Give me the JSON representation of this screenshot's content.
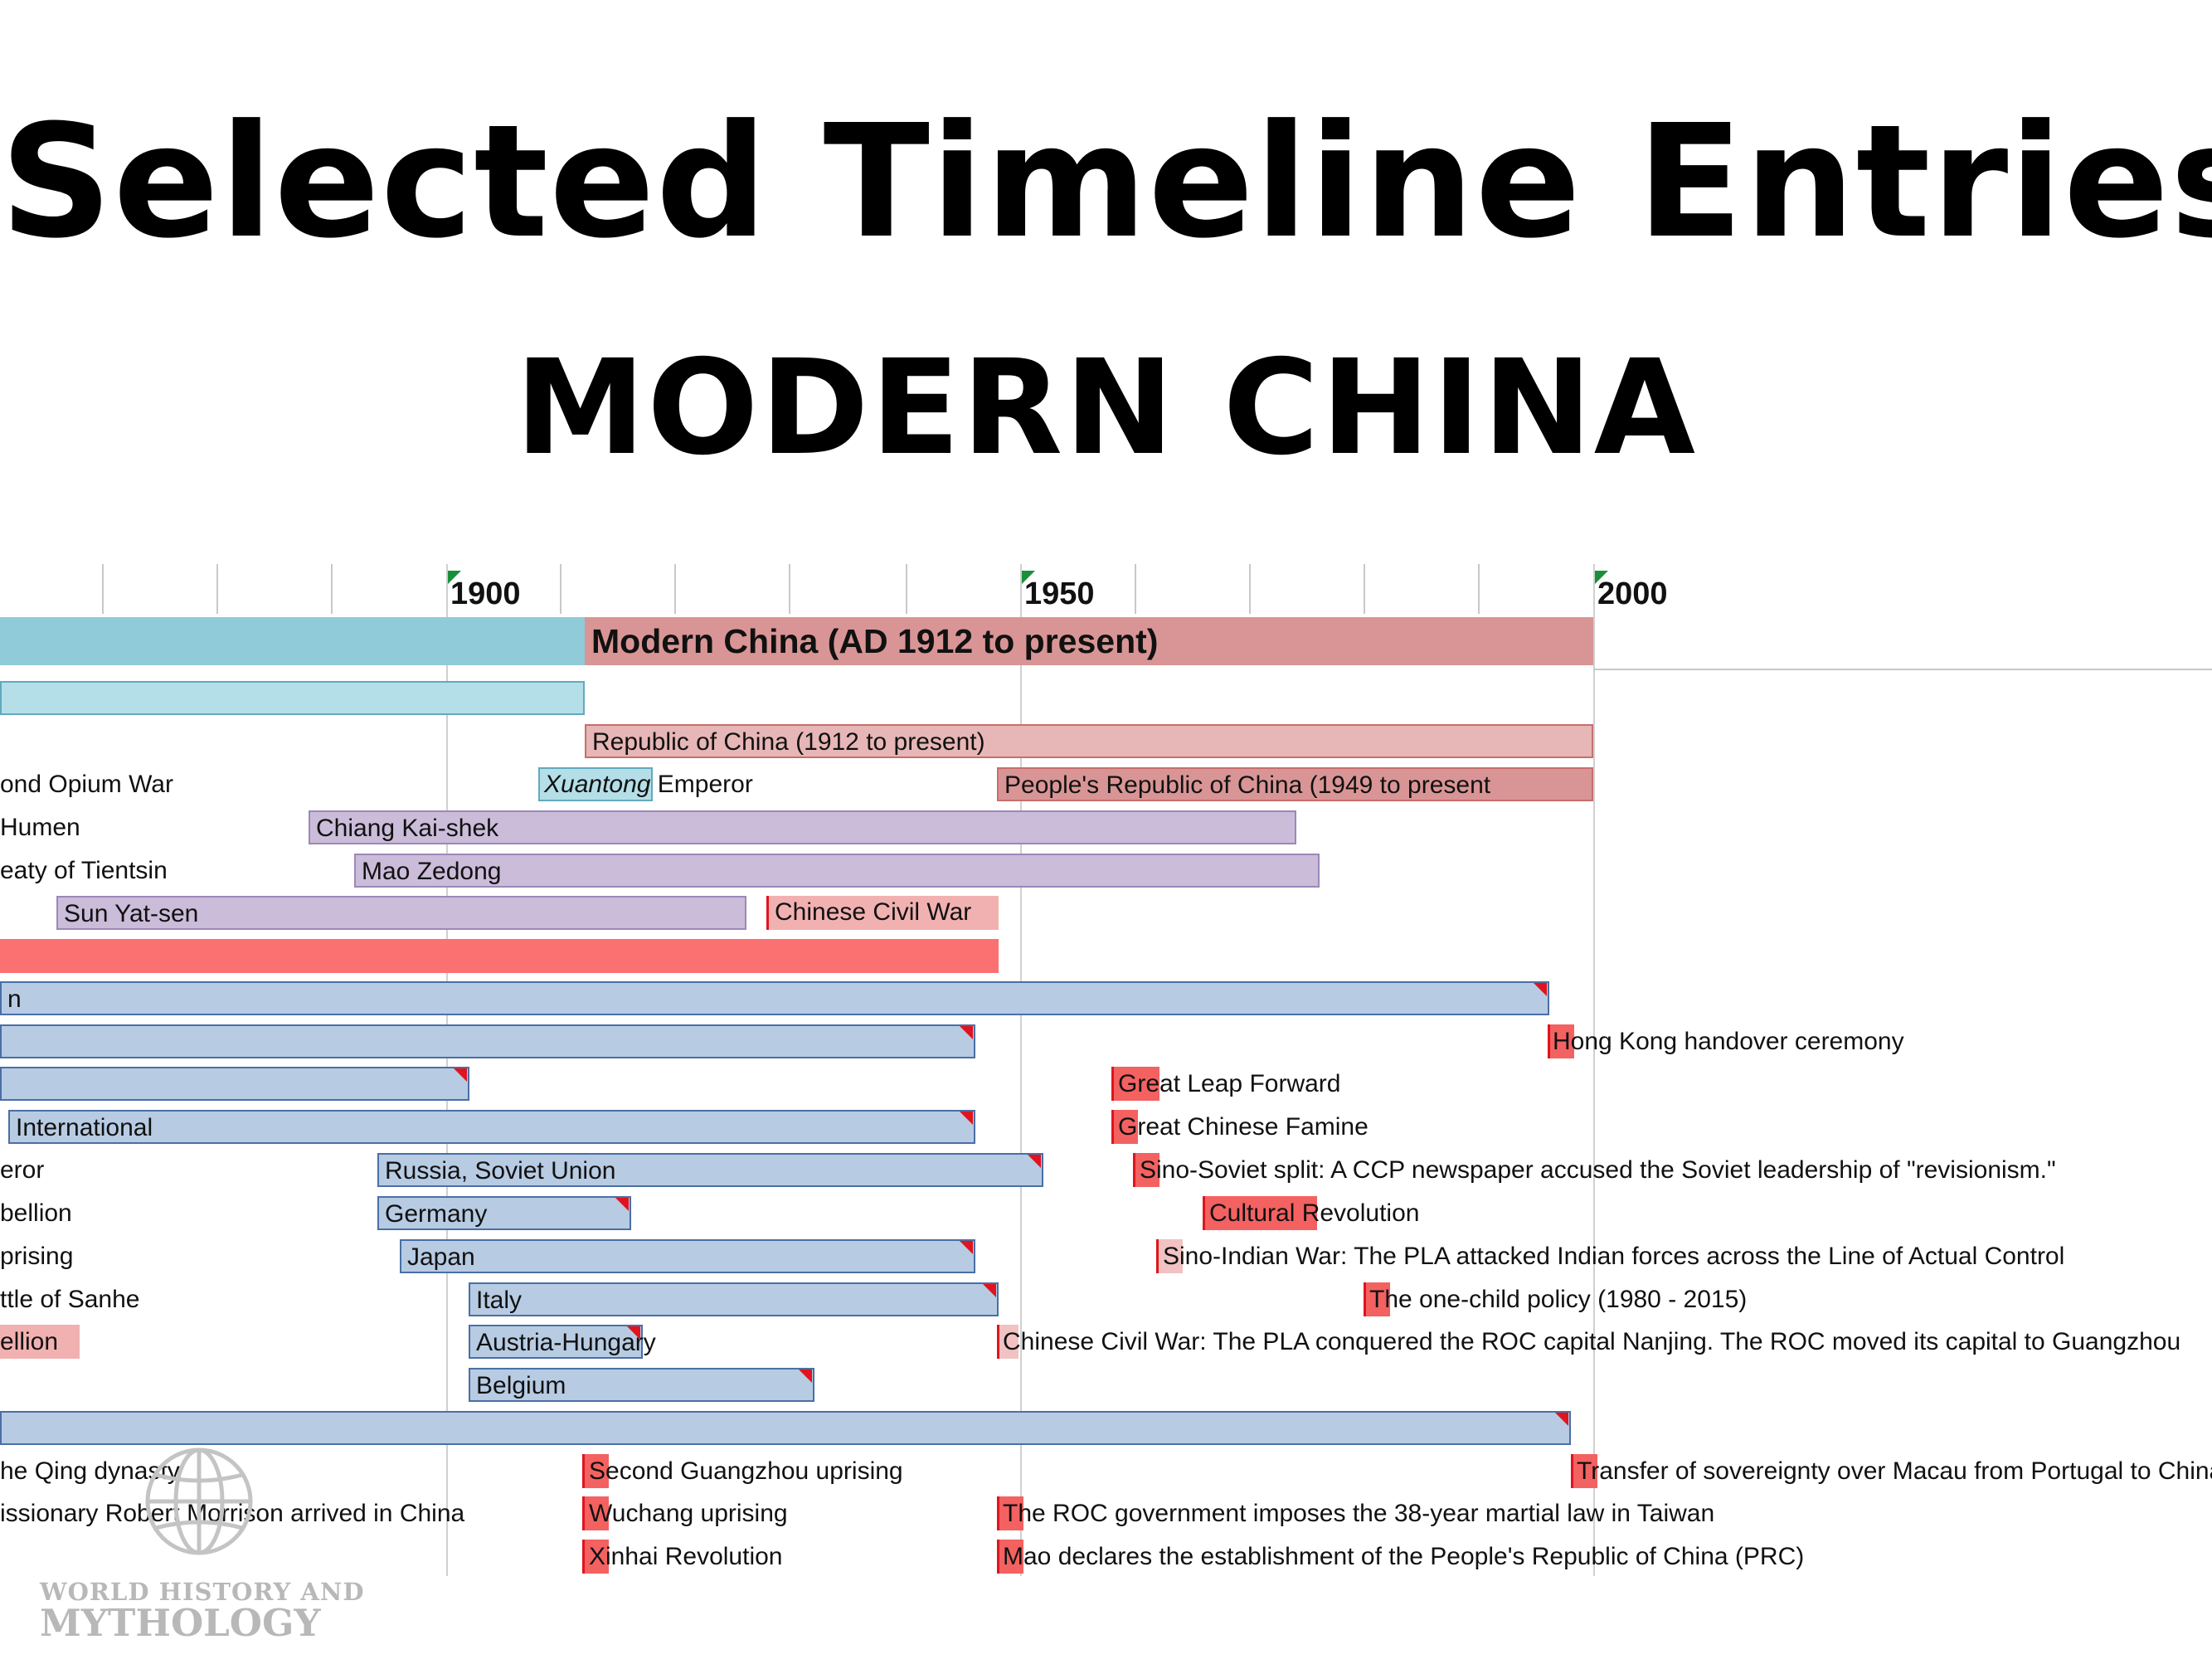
{
  "title": "Selected Timeline Entries",
  "subtitle": "MODERN CHINA",
  "axis": {
    "labels": [
      "1900",
      "1950",
      "2000"
    ],
    "flag_color": "#1a8f3a"
  },
  "colors": {
    "era_left": "#8fcbd8",
    "era_modern": "#d99595",
    "qing_bar": "#b4dfe8",
    "roc": "#e7b6b6",
    "prc": "#d99595",
    "person": "#cbbcda",
    "war": "#f2b1b1",
    "red_band": "#fb7171",
    "country": "#b7cbe3",
    "event_marker": "#f46161",
    "event_marker_light": "#f1c2c2",
    "corner": "#e0141e"
  },
  "era": {
    "label": "Modern China (AD 1912 to present)"
  },
  "periods": {
    "roc": "Republic of China (1912 to present)",
    "xuantong_name": "Xuantong",
    "xuantong_suffix": " Emperor",
    "prc": "People's Republic of China (1949 to present"
  },
  "people": {
    "chiang": "Chiang Kai-shek",
    "mao": "Mao Zedong",
    "sun": "Sun Yat-sen"
  },
  "wars": {
    "civil_war": "Chinese Civil War"
  },
  "countries": {
    "international": "International",
    "russia": "Russia, Soviet Union",
    "germany": "Germany",
    "japan": "Japan",
    "italy": "Italy",
    "austria": "Austria-Hungary",
    "belgium": "Belgium"
  },
  "left_fragments": [
    "ond Opium War",
    "Humen",
    "eaty of Tientsin",
    "n",
    "eror",
    "bellion",
    "prising",
    "ttle of Sanhe",
    "ellion",
    "he Qing dynasty",
    "issionary Robert Morrison arrived in China"
  ],
  "events": {
    "hong_kong": "Hong Kong handover ceremony",
    "great_leap": "Great Leap Forward",
    "famine": "Great Chinese Famine",
    "sino_soviet": "Sino-Soviet split: A CCP newspaper accused the Soviet leadership of \"revisionism.\"",
    "cultural_revolution": "Cultural Revolution",
    "sino_indian": "Sino-Indian War: The PLA attacked Indian forces across the Line of Actual Control",
    "one_child": "The one-child policy (1980 - 2015)",
    "civil_war_nanjing": "Chinese Civil War: The PLA conquered the ROC capital Nanjing. The ROC moved its capital to Guangzhou",
    "second_guangzhou": "Second Guangzhou uprising",
    "wuchang": "Wuchang uprising",
    "xinhai": "Xinhai Revolution",
    "macau": "Transfer of sovereignty over Macau from Portugal to China",
    "martial_law": "The ROC government imposes the 38-year martial law in Taiwan",
    "prc_declared": "Mao declares the establishment of the People's Republic of China (PRC)"
  },
  "logo": {
    "line1": "WORLD HISTORY AND",
    "line2": "MYTHOLOGY"
  }
}
